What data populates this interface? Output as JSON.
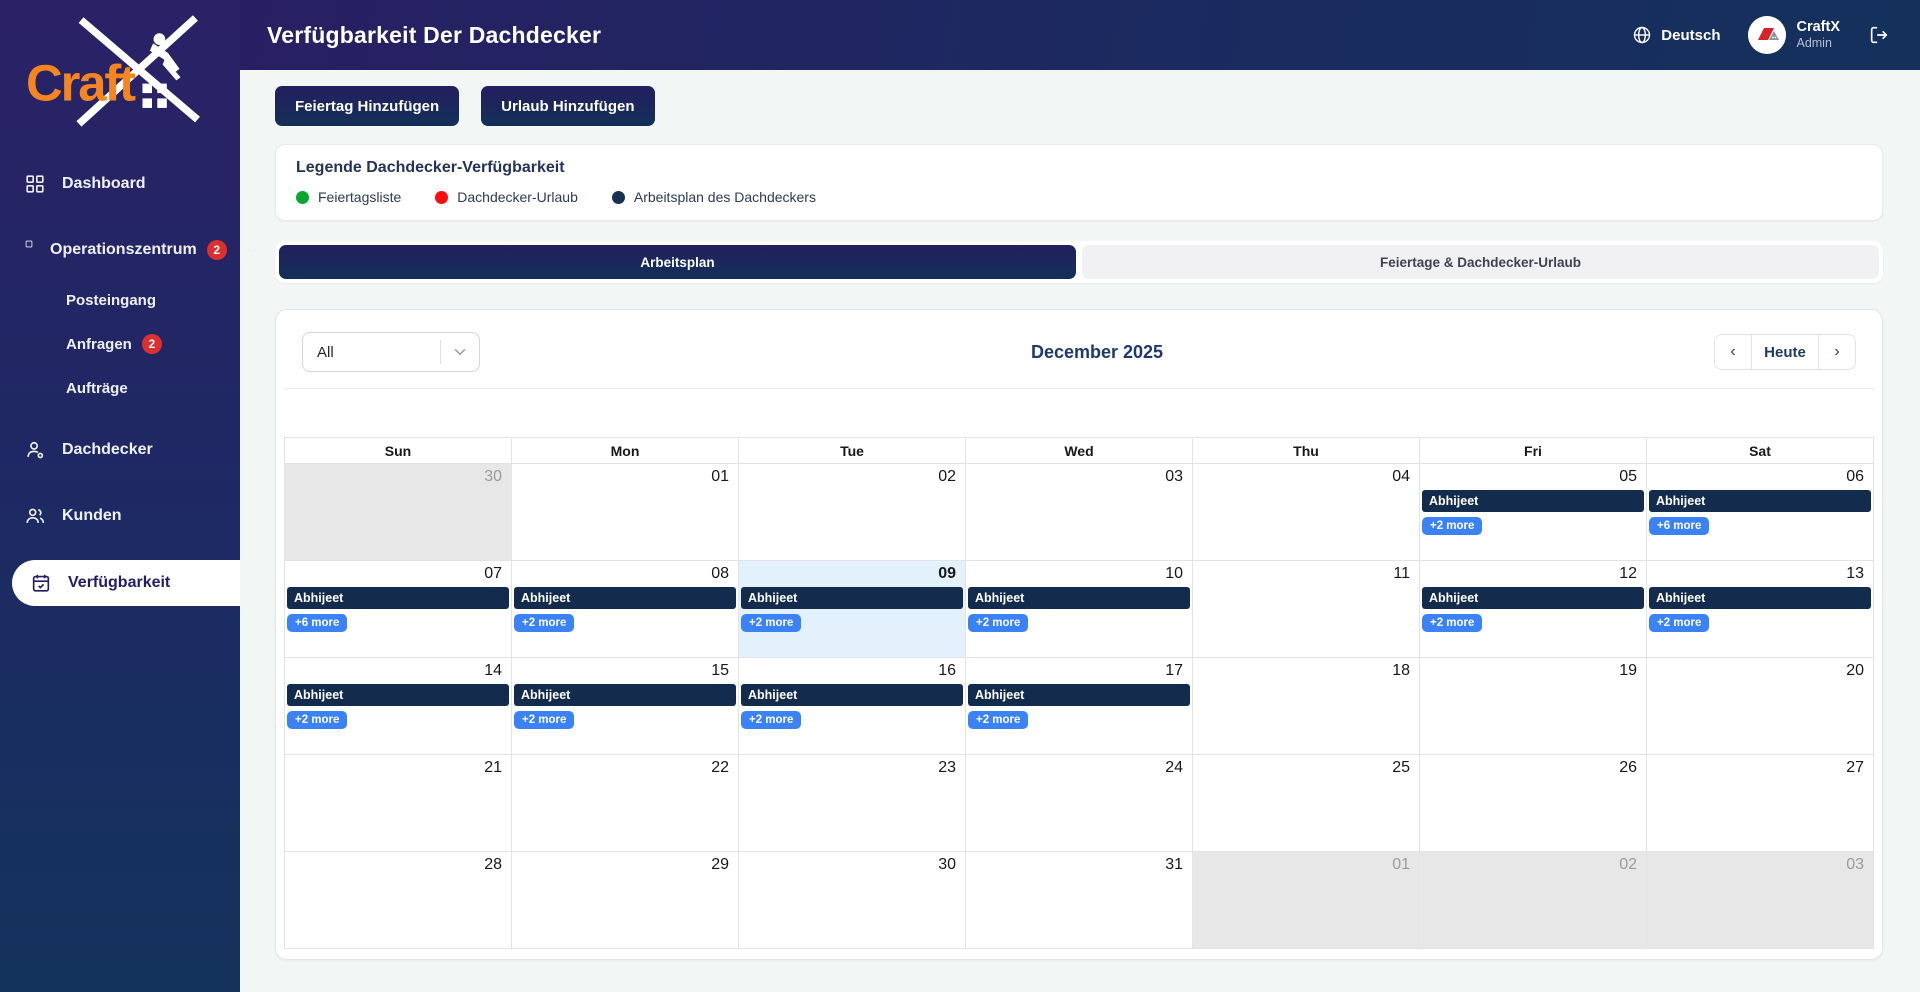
{
  "logo": {
    "text": "Craft"
  },
  "header": {
    "title": "Verfügbarkeit Der Dachdecker",
    "language_label": "Deutsch",
    "user_name": "CraftX",
    "user_role": "Admin"
  },
  "sidebar": {
    "items": [
      {
        "label": "Dashboard",
        "icon": "dashboard"
      },
      {
        "label": "Operationszentrum",
        "icon": "square",
        "badge": "2",
        "chevron": true,
        "group": true
      },
      {
        "label": "Posteingang",
        "sub": true
      },
      {
        "label": "Anfragen",
        "sub": true,
        "badge": "2"
      },
      {
        "label": "Aufträge",
        "sub": true
      },
      {
        "label": "Dachdecker",
        "icon": "person",
        "group": true
      },
      {
        "label": "Kunden",
        "icon": "people",
        "group": true
      },
      {
        "label": "Verfügbarkeit",
        "icon": "calendar",
        "active": true,
        "group": true
      }
    ]
  },
  "actions": {
    "add_holiday": "Feiertag Hinzufügen",
    "add_vacation": "Urlaub Hinzufügen"
  },
  "legend": {
    "title": "Legende Dachdecker-Verfügbarkeit",
    "items": [
      {
        "label": "Feiertagsliste",
        "color": "#0ba52f"
      },
      {
        "label": "Dachdecker-Urlaub",
        "color": "#f90d0d"
      },
      {
        "label": "Arbeitsplan des Dachdeckers",
        "color": "#16324f"
      }
    ]
  },
  "tabs": [
    {
      "label": "Arbeitsplan",
      "active": true
    },
    {
      "label": "Feiertage & Dachdecker-Urlaub",
      "active": false
    }
  ],
  "calendar": {
    "filter_value": "All",
    "month_title": "December 2025",
    "nav": {
      "prev": "‹",
      "today": "Heute",
      "next": "›"
    },
    "weekdays": [
      "Sun",
      "Mon",
      "Tue",
      "Wed",
      "Thu",
      "Fri",
      "Sat"
    ],
    "event_color": "#132c4d",
    "more_color": "#3b82f6",
    "weeks": [
      [
        {
          "day": "30",
          "outside": true
        },
        {
          "day": "01"
        },
        {
          "day": "02"
        },
        {
          "day": "03"
        },
        {
          "day": "04"
        },
        {
          "day": "05",
          "event": "Abhijeet",
          "more": "+2 more"
        },
        {
          "day": "06",
          "event": "Abhijeet",
          "more": "+6 more"
        }
      ],
      [
        {
          "day": "07",
          "event": "Abhijeet",
          "more": "+6 more"
        },
        {
          "day": "08",
          "event": "Abhijeet",
          "more": "+2 more"
        },
        {
          "day": "09",
          "today": true,
          "event": "Abhijeet",
          "more": "+2 more"
        },
        {
          "day": "10",
          "event": "Abhijeet",
          "more": "+2 more"
        },
        {
          "day": "11"
        },
        {
          "day": "12",
          "event": "Abhijeet",
          "more": "+2 more"
        },
        {
          "day": "13",
          "event": "Abhijeet",
          "more": "+2 more"
        }
      ],
      [
        {
          "day": "14",
          "event": "Abhijeet",
          "more": "+2 more"
        },
        {
          "day": "15",
          "event": "Abhijeet",
          "more": "+2 more"
        },
        {
          "day": "16",
          "event": "Abhijeet",
          "more": "+2 more"
        },
        {
          "day": "17",
          "event": "Abhijeet",
          "more": "+2 more"
        },
        {
          "day": "18"
        },
        {
          "day": "19"
        },
        {
          "day": "20"
        }
      ],
      [
        {
          "day": "21"
        },
        {
          "day": "22"
        },
        {
          "day": "23"
        },
        {
          "day": "24"
        },
        {
          "day": "25"
        },
        {
          "day": "26"
        },
        {
          "day": "27"
        }
      ],
      [
        {
          "day": "28"
        },
        {
          "day": "29"
        },
        {
          "day": "30"
        },
        {
          "day": "31"
        },
        {
          "day": "01",
          "outside": true
        },
        {
          "day": "02",
          "outside": true
        },
        {
          "day": "03",
          "outside": true
        }
      ]
    ]
  }
}
